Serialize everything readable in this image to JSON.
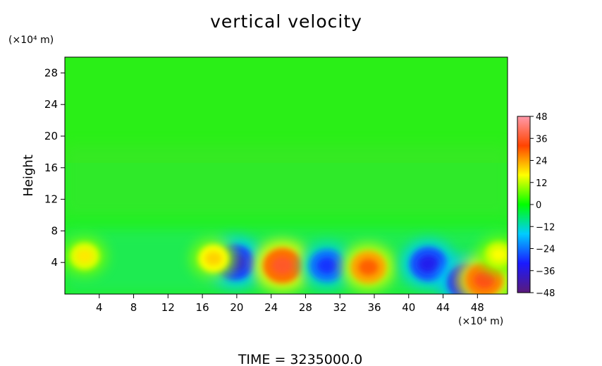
{
  "chart_data": {
    "type": "heatmap",
    "title": "vertical velocity",
    "xlabel": "",
    "ylabel": "Height",
    "x_unit": "(×10⁴ m)",
    "y_unit": "(×10⁴ m)",
    "footer": "TIME  =  3235000.0",
    "xlim": [
      0,
      51.5
    ],
    "ylim": [
      0,
      30
    ],
    "x_ticks": [
      4,
      8,
      12,
      16,
      20,
      24,
      28,
      32,
      36,
      40,
      44,
      48
    ],
    "y_ticks": [
      4,
      8,
      12,
      16,
      20,
      24,
      28
    ],
    "grid": false,
    "colorbar": {
      "min": -48,
      "max": 48,
      "ticks": [
        48,
        36,
        24,
        12,
        0,
        -12,
        -24,
        -36,
        -48
      ],
      "stops": [
        "#5a1a7a",
        "#1a1aff",
        "#00ccff",
        "#00ff00",
        "#ffff00",
        "#ff4400",
        "#ff99aa"
      ]
    },
    "features": [
      {
        "x": 19.8,
        "y": 4.0,
        "value": -36
      },
      {
        "x": 25.3,
        "y": 3.6,
        "value": 36
      },
      {
        "x": 30.5,
        "y": 3.6,
        "value": -30
      },
      {
        "x": 35.3,
        "y": 3.4,
        "value": 30
      },
      {
        "x": 42.3,
        "y": 3.8,
        "value": -34
      },
      {
        "x": 46.8,
        "y": 1.5,
        "value": -38
      },
      {
        "x": 48.8,
        "y": 1.8,
        "value": 34
      },
      {
        "x": 2.3,
        "y": 4.8,
        "value": 18
      },
      {
        "x": 17.3,
        "y": 4.5,
        "value": 20
      },
      {
        "x": 50.5,
        "y": 5.0,
        "value": 16
      }
    ]
  }
}
